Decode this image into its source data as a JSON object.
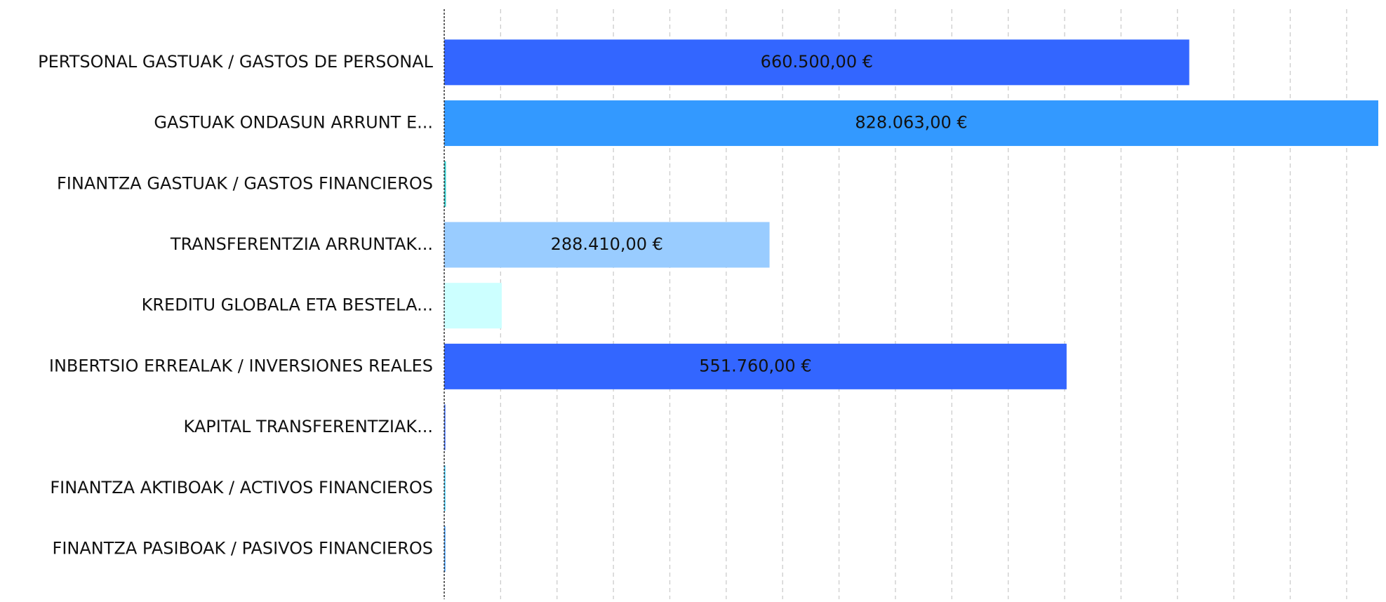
{
  "chart_data": {
    "type": "hbar",
    "categories": [
      "PERTSONAL GASTUAK / GASTOS DE PERSONAL",
      "GASTUAK ONDASUN ARRUNT E...",
      "FINANTZA GASTUAK / GASTOS FINANCIEROS",
      "TRANSFERENTZIA ARRUNTAK...",
      "KREDITU GLOBALA ETA BESTELA...",
      "INBERTSIO ERREALAK / INVERSIONES REALES",
      "KAPITAL TRANSFERENTZIAK...",
      "FINANTZA AKTIBOAK / ACTIVOS FINANCIEROS",
      "FINANTZA PASIBOAK / PASIVOS FINANCIEROS"
    ],
    "values": [
      660500,
      828063,
      1500,
      288410,
      51000,
      551760,
      1000,
      1000,
      1000
    ],
    "value_labels": [
      "660.500,00 €",
      "828.063,00 €",
      null,
      "288.410,00 €",
      null,
      "551.760,00 €",
      null,
      null,
      null
    ],
    "colors": [
      "#3366ff",
      "#3399ff",
      "#33cccc",
      "#99ccff",
      "#ccffff",
      "#3366ff",
      "#3366ff",
      "#33ccff",
      "#3399ff"
    ],
    "xlim": [
      0,
      828063
    ],
    "xticks": [
      0,
      50000,
      100000,
      150000,
      200000,
      250000,
      300000,
      350000,
      400000,
      450000,
      500000,
      550000,
      600000,
      650000,
      700000,
      750000,
      800000
    ],
    "grid": true
  }
}
